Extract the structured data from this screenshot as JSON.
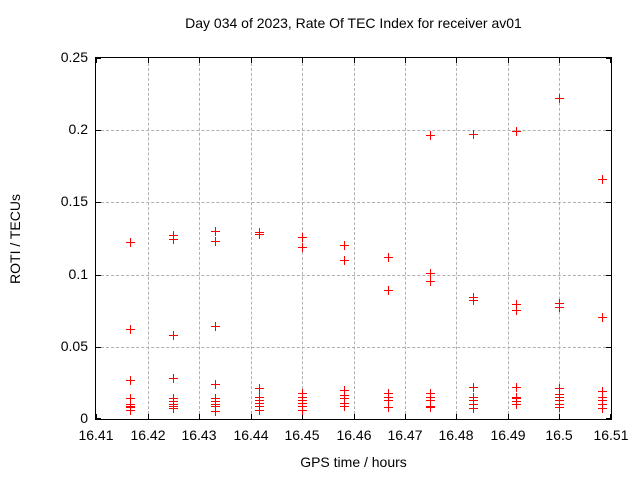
{
  "chart_data": {
    "type": "scatter",
    "title": "Day 034 of 2023, Rate Of TEC Index for receiver av01",
    "xlabel": "GPS time / hours",
    "ylabel": "ROTI / TECUs",
    "xlim": [
      16.41,
      16.51
    ],
    "ylim": [
      0,
      0.25
    ],
    "x_ticks": [
      16.41,
      16.42,
      16.43,
      16.44,
      16.45,
      16.46,
      16.47,
      16.48,
      16.49,
      16.5,
      16.51
    ],
    "x_tick_labels": [
      "16.41",
      "16.42",
      "16.43",
      "16.44",
      "16.45",
      "16.46",
      "16.47",
      "16.48",
      "16.49",
      "16.5",
      "16.51"
    ],
    "y_ticks": [
      0,
      0.05,
      0.1,
      0.15,
      0.2,
      0.25
    ],
    "y_tick_labels": [
      "0",
      "0.05",
      "0.1",
      "0.15",
      "0.2",
      "0.25"
    ],
    "grid": true,
    "legend": "none",
    "marker": "plus",
    "marker_color": "#ff0000",
    "series": [
      {
        "name": "ROTI",
        "points": [
          [
            16.4167,
            0.122
          ],
          [
            16.4167,
            0.062
          ],
          [
            16.4167,
            0.027
          ],
          [
            16.4167,
            0.014
          ],
          [
            16.4167,
            0.01
          ],
          [
            16.4167,
            0.009
          ],
          [
            16.4167,
            0.008
          ],
          [
            16.4167,
            0.006
          ],
          [
            16.425,
            0.127
          ],
          [
            16.425,
            0.124
          ],
          [
            16.425,
            0.058
          ],
          [
            16.425,
            0.028
          ],
          [
            16.425,
            0.014
          ],
          [
            16.425,
            0.012
          ],
          [
            16.425,
            0.01
          ],
          [
            16.425,
            0.009
          ],
          [
            16.425,
            0.007
          ],
          [
            16.4333,
            0.13
          ],
          [
            16.4333,
            0.123
          ],
          [
            16.4333,
            0.064
          ],
          [
            16.4333,
            0.024
          ],
          [
            16.4333,
            0.014
          ],
          [
            16.4333,
            0.012
          ],
          [
            16.4333,
            0.01
          ],
          [
            16.4333,
            0.009
          ],
          [
            16.4333,
            0.005
          ],
          [
            16.4417,
            0.129
          ],
          [
            16.4417,
            0.128
          ],
          [
            16.4417,
            0.021
          ],
          [
            16.4417,
            0.015
          ],
          [
            16.4417,
            0.013
          ],
          [
            16.4417,
            0.011
          ],
          [
            16.4417,
            0.009
          ],
          [
            16.4417,
            0.006
          ],
          [
            16.45,
            0.126
          ],
          [
            16.45,
            0.119
          ],
          [
            16.45,
            0.018
          ],
          [
            16.45,
            0.015
          ],
          [
            16.45,
            0.013
          ],
          [
            16.45,
            0.011
          ],
          [
            16.45,
            0.009
          ],
          [
            16.45,
            0.006
          ],
          [
            16.4583,
            0.12
          ],
          [
            16.4583,
            0.11
          ],
          [
            16.4583,
            0.02
          ],
          [
            16.4583,
            0.016
          ],
          [
            16.4583,
            0.014
          ],
          [
            16.4583,
            0.011
          ],
          [
            16.4583,
            0.009
          ],
          [
            16.4667,
            0.112
          ],
          [
            16.4667,
            0.089
          ],
          [
            16.4667,
            0.018
          ],
          [
            16.4667,
            0.015
          ],
          [
            16.4667,
            0.013
          ],
          [
            16.4667,
            0.008
          ],
          [
            16.475,
            0.196
          ],
          [
            16.475,
            0.101
          ],
          [
            16.475,
            0.095
          ],
          [
            16.475,
            0.018
          ],
          [
            16.475,
            0.015
          ],
          [
            16.475,
            0.013
          ],
          [
            16.475,
            0.009
          ],
          [
            16.475,
            0.008
          ],
          [
            16.4833,
            0.197
          ],
          [
            16.4833,
            0.084
          ],
          [
            16.4833,
            0.082
          ],
          [
            16.4833,
            0.022
          ],
          [
            16.4833,
            0.015
          ],
          [
            16.4833,
            0.013
          ],
          [
            16.4833,
            0.01
          ],
          [
            16.4833,
            0.007
          ],
          [
            16.4917,
            0.199
          ],
          [
            16.4917,
            0.079
          ],
          [
            16.4917,
            0.075
          ],
          [
            16.4917,
            0.022
          ],
          [
            16.4917,
            0.015
          ],
          [
            16.4917,
            0.014
          ],
          [
            16.4917,
            0.012
          ],
          [
            16.4917,
            0.01
          ],
          [
            16.5,
            0.222
          ],
          [
            16.5,
            0.08
          ],
          [
            16.5,
            0.077
          ],
          [
            16.5,
            0.021
          ],
          [
            16.5,
            0.017
          ],
          [
            16.5,
            0.015
          ],
          [
            16.5,
            0.013
          ],
          [
            16.5,
            0.01
          ],
          [
            16.5,
            0.008
          ],
          [
            16.5083,
            0.166
          ],
          [
            16.5083,
            0.07
          ],
          [
            16.5083,
            0.019
          ],
          [
            16.5083,
            0.015
          ],
          [
            16.5083,
            0.013
          ],
          [
            16.5083,
            0.01
          ],
          [
            16.5083,
            0.007
          ]
        ]
      }
    ]
  }
}
